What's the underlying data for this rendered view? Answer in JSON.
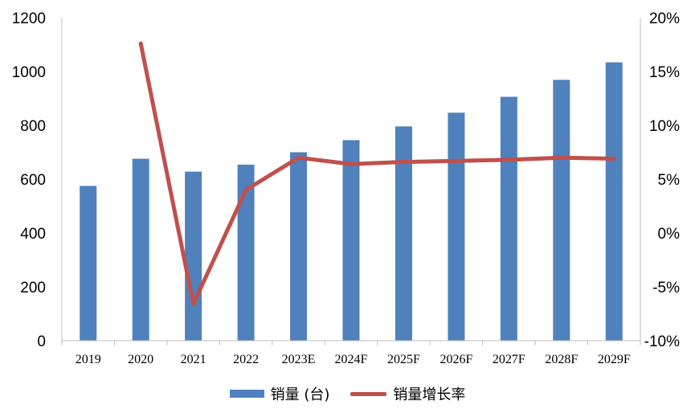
{
  "chart_data": {
    "type": "bar+line",
    "categories": [
      "2019",
      "2020",
      "2021",
      "2022",
      "2023E",
      "2024F",
      "2025F",
      "2026F",
      "2027F",
      "2028F",
      "2029F"
    ],
    "series": [
      {
        "name": "销量 (台)",
        "type": "bar",
        "axis": "left",
        "color": "#4f81bd",
        "values": [
          575,
          676,
          628,
          654,
          700,
          745,
          796,
          847,
          906,
          969,
          1034
        ]
      },
      {
        "name": "销量增长率",
        "type": "line",
        "axis": "right",
        "color": "#c0504d",
        "values": [
          null,
          17.6,
          -6.6,
          4.0,
          7.0,
          6.4,
          6.6,
          6.7,
          6.8,
          7.0,
          6.9
        ]
      }
    ],
    "y_left": {
      "min": 0,
      "max": 1200,
      "ticks": [
        "0",
        "200",
        "400",
        "600",
        "800",
        "1000",
        "1200"
      ]
    },
    "y_right": {
      "min": -10,
      "max": 20,
      "ticks": [
        "-10%",
        "-5%",
        "0%",
        "5%",
        "10%",
        "15%",
        "20%"
      ]
    },
    "grid": false,
    "legend_position": "bottom"
  }
}
